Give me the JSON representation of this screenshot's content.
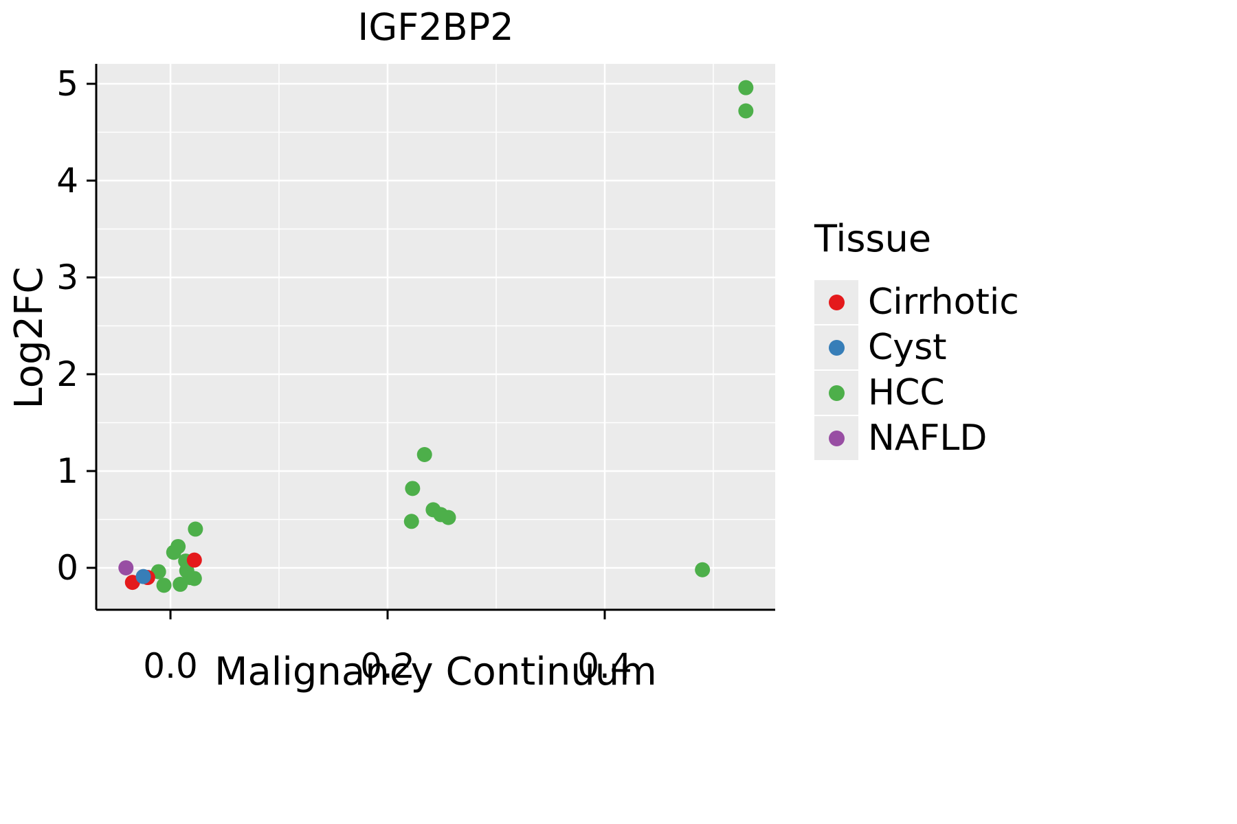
{
  "chart_data": {
    "type": "scatter",
    "title": "IGF2BP2",
    "xlabel": "Malignancy Continuum",
    "ylabel": "Log2FC",
    "legend_title": "Tissue",
    "xlim": [
      -0.0684,
      0.557
    ],
    "ylim": [
      -0.433,
      5.206
    ],
    "xticks": [
      0.0,
      0.2,
      0.4
    ],
    "xtick_labels": [
      "0.0",
      "0.2",
      "0.4"
    ],
    "yticks": [
      0,
      1,
      2,
      3,
      4,
      5
    ],
    "ytick_labels": [
      "0",
      "1",
      "2",
      "3",
      "4",
      "5"
    ],
    "xminor": [
      0.1,
      0.3,
      0.5
    ],
    "yminor": [
      0.5,
      1.5,
      2.5,
      3.5,
      4.5
    ],
    "panel_bg": "#EBEBEB",
    "grid_color": "#FFFFFF",
    "axis_color": "#000000",
    "point_radius": 11,
    "draw_order": [
      2,
      0,
      1,
      3
    ],
    "series": [
      {
        "name": "Cirrhotic",
        "color": "#E41A1C",
        "points": [
          [
            -0.035,
            -0.15
          ],
          [
            -0.021,
            -0.1
          ],
          [
            0.022,
            0.08
          ]
        ]
      },
      {
        "name": "Cyst",
        "color": "#377EB8",
        "points": [
          [
            -0.025,
            -0.09
          ]
        ]
      },
      {
        "name": "HCC",
        "color": "#4DAF4A",
        "points": [
          [
            -0.011,
            -0.04
          ],
          [
            -0.006,
            -0.18
          ],
          [
            0.003,
            0.16
          ],
          [
            0.007,
            0.22
          ],
          [
            0.009,
            -0.17
          ],
          [
            0.014,
            0.07
          ],
          [
            0.015,
            -0.03
          ],
          [
            0.018,
            -0.1
          ],
          [
            0.022,
            -0.11
          ],
          [
            0.023,
            0.4
          ],
          [
            0.222,
            0.48
          ],
          [
            0.223,
            0.82
          ],
          [
            0.234,
            1.17
          ],
          [
            0.242,
            0.6
          ],
          [
            0.249,
            0.55
          ],
          [
            0.256,
            0.52
          ],
          [
            0.49,
            -0.02
          ],
          [
            0.53,
            4.96
          ],
          [
            0.53,
            4.72
          ]
        ]
      },
      {
        "name": "NAFLD",
        "color": "#984EA3",
        "points": [
          [
            -0.041,
            0.0
          ]
        ]
      }
    ]
  }
}
